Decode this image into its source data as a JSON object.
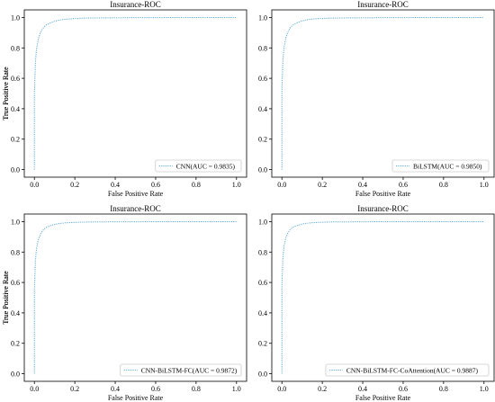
{
  "chart_data": [
    {
      "type": "line",
      "title": "Insurance-ROC",
      "xlabel": "False Positive Rate",
      "ylabel": "True Positive Rate",
      "xlim": [
        -0.05,
        1.05
      ],
      "ylim": [
        -0.05,
        1.05
      ],
      "xticks": [
        "0.0",
        "0.2",
        "0.4",
        "0.6",
        "0.8",
        "1.0"
      ],
      "yticks": [
        "0.0",
        "0.2",
        "0.4",
        "0.6",
        "0.8",
        "1.0"
      ],
      "grid": false,
      "legend_position": "lower right",
      "series": [
        {
          "name": "CNN(AUC = 0.9835)",
          "color": "#5aa9d6",
          "x": [
            0,
            0,
            0.005,
            0.01,
            0.02,
            0.03,
            0.04,
            0.05,
            0.06,
            0.08,
            0.1,
            0.12,
            0.15,
            0.2,
            0.25,
            0.3,
            0.4,
            0.5,
            0.6,
            0.7,
            0.8,
            0.9,
            1.0
          ],
          "y": [
            0,
            0.5,
            0.7,
            0.79,
            0.86,
            0.9,
            0.925,
            0.94,
            0.952,
            0.965,
            0.975,
            0.982,
            0.988,
            0.993,
            0.996,
            0.997,
            0.998,
            0.999,
            0.999,
            1.0,
            1.0,
            1.0,
            1.0
          ]
        }
      ]
    },
    {
      "type": "line",
      "title": "Insurance-ROC",
      "xlabel": "False Positive Rate",
      "ylabel": "True Positive Rate",
      "xlim": [
        -0.05,
        1.05
      ],
      "ylim": [
        -0.05,
        1.05
      ],
      "xticks": [
        "0.0",
        "0.2",
        "0.4",
        "0.6",
        "0.8",
        "1.0"
      ],
      "yticks": [
        "0.0",
        "0.2",
        "0.4",
        "0.6",
        "0.8",
        "1.0"
      ],
      "grid": false,
      "legend_position": "lower right",
      "series": [
        {
          "name": "BiLSTM(AUC = 0.9850)",
          "color": "#5aa9d6",
          "x": [
            0,
            0,
            0.005,
            0.01,
            0.02,
            0.03,
            0.04,
            0.05,
            0.06,
            0.08,
            0.1,
            0.12,
            0.15,
            0.2,
            0.25,
            0.3,
            0.4,
            0.5,
            0.6,
            0.7,
            0.8,
            0.9,
            1.0
          ],
          "y": [
            0,
            0.52,
            0.72,
            0.8,
            0.87,
            0.905,
            0.93,
            0.945,
            0.956,
            0.968,
            0.977,
            0.984,
            0.99,
            0.994,
            0.996,
            0.997,
            0.998,
            0.999,
            0.999,
            1.0,
            1.0,
            1.0,
            1.0
          ]
        }
      ]
    },
    {
      "type": "line",
      "title": "Insurance-ROC",
      "xlabel": "False Positive Rate",
      "ylabel": "True Positive Rate",
      "xlim": [
        -0.05,
        1.05
      ],
      "ylim": [
        -0.05,
        1.05
      ],
      "xticks": [
        "0.0",
        "0.2",
        "0.4",
        "0.6",
        "0.8",
        "1.0"
      ],
      "yticks": [
        "0.0",
        "0.2",
        "0.4",
        "0.6",
        "0.8",
        "1.0"
      ],
      "grid": false,
      "legend_position": "lower right",
      "series": [
        {
          "name": "CNN-BiLSTM-FC(AUC = 0.9872)",
          "color": "#5aa9d6",
          "x": [
            0,
            0,
            0.005,
            0.01,
            0.02,
            0.03,
            0.04,
            0.05,
            0.06,
            0.08,
            0.1,
            0.12,
            0.15,
            0.2,
            0.25,
            0.3,
            0.4,
            0.5,
            0.6,
            0.7,
            0.8,
            0.9,
            1.0
          ],
          "y": [
            0,
            0.55,
            0.74,
            0.82,
            0.885,
            0.918,
            0.94,
            0.953,
            0.963,
            0.974,
            0.982,
            0.987,
            0.992,
            0.995,
            0.997,
            0.998,
            0.999,
            0.999,
            1.0,
            1.0,
            1.0,
            1.0,
            1.0
          ]
        }
      ]
    },
    {
      "type": "line",
      "title": "Insurance-ROC",
      "xlabel": "False Positive Rate",
      "ylabel": "True Positive Rate",
      "xlim": [
        -0.05,
        1.05
      ],
      "ylim": [
        -0.05,
        1.05
      ],
      "xticks": [
        "0.0",
        "0.2",
        "0.4",
        "0.6",
        "0.8",
        "1.0"
      ],
      "yticks": [
        "0.0",
        "0.2",
        "0.4",
        "0.6",
        "0.8",
        "1.0"
      ],
      "grid": false,
      "legend_position": "lower right",
      "series": [
        {
          "name": "CNN-BiLSTM-FC-CoAttention(AUC = 0.9887)",
          "color": "#5aa9d6",
          "x": [
            0,
            0,
            0.005,
            0.01,
            0.02,
            0.03,
            0.04,
            0.05,
            0.06,
            0.08,
            0.1,
            0.12,
            0.15,
            0.2,
            0.25,
            0.3,
            0.4,
            0.5,
            0.6,
            0.7,
            0.8,
            0.9,
            1.0
          ],
          "y": [
            0,
            0.57,
            0.76,
            0.835,
            0.895,
            0.926,
            0.946,
            0.958,
            0.967,
            0.977,
            0.984,
            0.989,
            0.993,
            0.996,
            0.998,
            0.998,
            0.999,
            1.0,
            1.0,
            1.0,
            1.0,
            1.0,
            1.0
          ]
        }
      ]
    }
  ]
}
